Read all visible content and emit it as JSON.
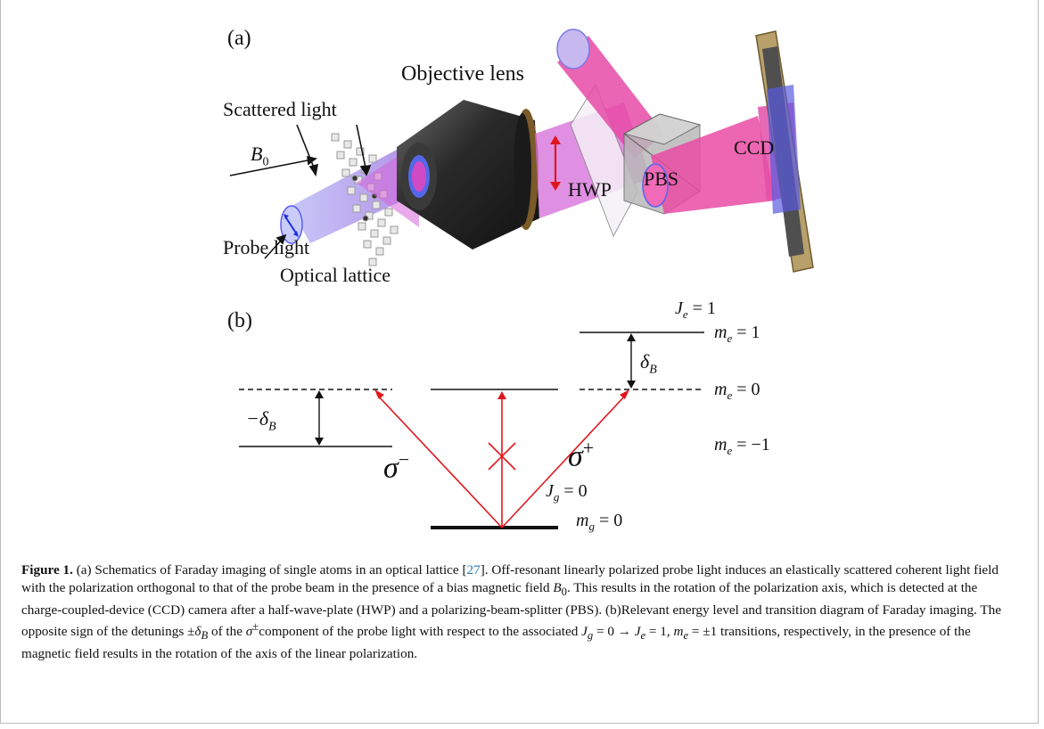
{
  "panel_a": {
    "label": "(a)",
    "labels": {
      "objective_lens": "Objective lens",
      "scattered_light": "Scattered light",
      "b0": "B",
      "b0_sub": "0",
      "probe_light": "Probe light",
      "optical_lattice": "Optical lattice",
      "hwp": "HWP",
      "pbs": "PBS",
      "ccd": "CCD"
    }
  },
  "panel_b": {
    "label": "(b)",
    "je": "J",
    "je_sub": "e",
    "je_val": "= 1",
    "me1": "m",
    "me1_sub": "e",
    "me1_val": "= 1",
    "me0_val": "= 0",
    "mem1_val": "= −1",
    "delta": "δ",
    "delta_sub": "B",
    "neg_delta": "−δ",
    "sigma": "σ",
    "minus": "−",
    "plus": "+",
    "jg": "J",
    "jg_sub": "g",
    "jg_val": "= 0",
    "mg": "m",
    "mg_sub": "g",
    "mg_val": "= 0"
  },
  "caption": {
    "fig_label": "Figure 1.",
    "text1": " (a) Schematics of Faraday imaging of single atoms in an optical lattice [",
    "ref": "27",
    "text2": "]. Off-resonant linearly polarized probe light induces an elastically scattered coherent light field with the polarization orthogonal to that of the probe beam in the presence of a bias magnetic field ",
    "b0": "B",
    "b0_sub": "0",
    "text3": ". This results in the rotation of the polarization axis, which is detected at the charge-coupled-device (CCD) camera after a half-wave-plate (HWP) and a polarizing-beam-splitter (PBS). (b)Relevant energy level and transition diagram of Faraday imaging. The opposite sign of the detunings ",
    "pm_delta": "±δ",
    "pm_delta_sub": "B",
    "text4": " of the ",
    "sigma_pm": "σ",
    "sigma_pm_sup": "±",
    "text5": "component of the probe light with respect to the associated ",
    "transition": "J",
    "transition_sub_g": "g",
    "transition_mid": " = 0 → ",
    "transition_e": "J",
    "transition_sub_e": "e",
    "transition_end": " = 1, ",
    "me": "m",
    "me_sub": "e",
    "me_end": " = ±1",
    "text6": " transitions, respectively, in the presence of the magnetic field results in the rotation of the axis of the linear polarization."
  },
  "colors": {
    "beam_magenta": "#e0409f",
    "beam_blue": "#8a8cf2",
    "lens_dark": "#2c2c2c",
    "arrow_red": "#e0151c",
    "ccd_gold": "#b8a06b",
    "ref_blue": "#1f78b4"
  }
}
